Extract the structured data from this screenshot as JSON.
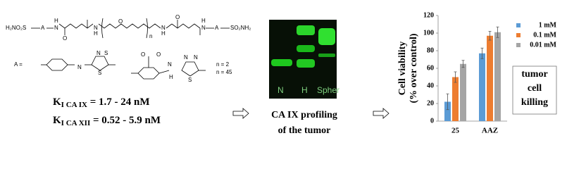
{
  "structure": {
    "left_group": "H₂NO₂S",
    "a1": "A",
    "nh1": "N",
    "h1": "H",
    "o1": "O",
    "nh2": "N",
    "h2": "H",
    "o_chain": "O",
    "n": "n",
    "nh3": "N",
    "h3": "H",
    "o2": "O",
    "nh4": "N",
    "h4": "H",
    "a2": "A",
    "right_group": "SO₂NH₂",
    "a_def": "A =",
    "n_values": [
      "n = 2",
      "n = 45"
    ],
    "hetero": [
      "N",
      "N",
      "S",
      "S",
      "O",
      "O",
      "N",
      "H",
      "N",
      "N",
      "S"
    ]
  },
  "ki": [
    {
      "symbol": "K",
      "sub": "I CA IX",
      "value": " = 1.7 - 24 nM"
    },
    {
      "symbol": "K",
      "sub": "I CA XII",
      "value": " = 0.52 - 5.9 nM"
    }
  ],
  "blot": {
    "lanes": [
      "N",
      "H",
      "Spher"
    ]
  },
  "middle_caption": [
    "CA IX profiling",
    "of the tumor"
  ],
  "chart_data": {
    "type": "bar",
    "categories": [
      "25",
      "AAZ"
    ],
    "series": [
      {
        "name": "1 mM",
        "color": "#5b9bd5",
        "values": [
          22,
          77
        ],
        "errors": [
          9,
          6
        ]
      },
      {
        "name": "0.1 mM",
        "color": "#ed7d31",
        "values": [
          50,
          97
        ],
        "errors": [
          6,
          5
        ]
      },
      {
        "name": "0.01 mM",
        "color": "#a5a5a5",
        "values": [
          65,
          101
        ],
        "errors": [
          4,
          6
        ]
      }
    ],
    "ylabel": [
      "Cell viability",
      "(% over control)"
    ],
    "ylim": [
      0,
      120
    ],
    "yticks": [
      0,
      20,
      40,
      60,
      80,
      100,
      120
    ],
    "grid": false,
    "annotation": [
      "tumor",
      "cell",
      "killing"
    ]
  }
}
